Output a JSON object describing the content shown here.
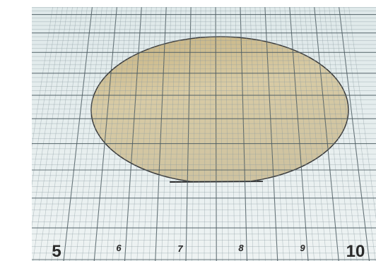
{
  "ruler": {
    "labels": [
      "5",
      "6",
      "7",
      "8",
      "9",
      "10"
    ]
  }
}
